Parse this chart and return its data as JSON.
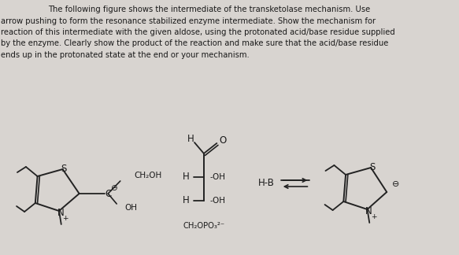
{
  "background_color": "#d8d4d0",
  "text_color": "#1a1a1a",
  "title_line1": "The following figure shows the intermediate of the transketolase mechanism. Use",
  "title_line2": "arrow pushing to form the resonance stabilized enzyme intermediate. Show the mechanism for",
  "title_line3": "reaction of this intermediate with the given aldose, using the protonated acid/base residue supplied",
  "title_line4": "by the enzyme. Clearly show the product of the reaction and make sure that the acid/base residue",
  "title_line5": "ends up in the protonated state at the end or your mechanism.",
  "figsize": [
    5.83,
    3.24
  ],
  "dpi": 100
}
